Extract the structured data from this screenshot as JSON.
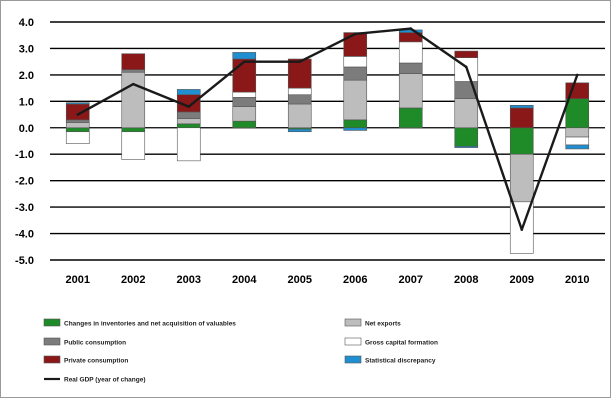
{
  "chart_data": {
    "type": "bar",
    "categories": [
      "2001",
      "2002",
      "2003",
      "2004",
      "2005",
      "2006",
      "2007",
      "2008",
      "2009",
      "2010"
    ],
    "ylim": [
      -5.0,
      4.0
    ],
    "yticks": [
      "4.0",
      "3.0",
      "2.0",
      "1.0",
      "0.0",
      "-1.0",
      "-2.0",
      "-3.0",
      "-4.0",
      "-5.0"
    ],
    "gridlines": true,
    "legend_position": "bottom",
    "stack_order": [
      "Changes in inventories and net acquisition of valuables",
      "Net exports",
      "Public consumption",
      "Gross capital formation",
      "Private consumption",
      "Statistical discrepancy"
    ],
    "series": [
      {
        "name": "Changes in inventories and net acquisition of valuables",
        "color": "#1e8a28",
        "values": [
          -0.15,
          -0.15,
          0.15,
          0.25,
          -0.05,
          0.3,
          0.75,
          -0.7,
          -1.0,
          1.1
        ]
      },
      {
        "name": "Net exports",
        "color": "#bdbdbd",
        "values": [
          0.2,
          2.1,
          0.2,
          0.55,
          0.9,
          1.5,
          1.3,
          1.1,
          -1.8,
          -0.35
        ]
      },
      {
        "name": "Public consumption",
        "color": "#7c7c7c",
        "values": [
          0.1,
          0.1,
          0.25,
          0.35,
          0.35,
          0.5,
          0.4,
          0.65,
          0.0,
          0.0
        ]
      },
      {
        "name": "Gross capital formation",
        "color": "#ffffff",
        "values": [
          -0.45,
          -1.05,
          -1.25,
          0.2,
          0.25,
          0.4,
          0.8,
          0.9,
          -1.95,
          -0.3
        ]
      },
      {
        "name": "Private consumption",
        "color": "#8b1818",
        "values": [
          0.6,
          0.6,
          0.65,
          1.25,
          1.1,
          0.9,
          0.35,
          0.25,
          0.75,
          0.6
        ]
      },
      {
        "name": "Statistical discrepancy",
        "color": "#1f8fd1",
        "values": [
          0.05,
          0.0,
          0.2,
          0.25,
          -0.1,
          -0.1,
          0.1,
          -0.05,
          0.1,
          -0.15
        ]
      }
    ],
    "line": {
      "name": "Real GDP (year of change)",
      "color": "#1a1a1a",
      "values": [
        0.5,
        1.65,
        0.8,
        2.5,
        2.5,
        3.55,
        3.75,
        2.3,
        -3.85,
        2.0
      ]
    }
  },
  "legend": {
    "items": [
      {
        "key": "inv",
        "label": "Changes in inventories and net acquisition of valuables",
        "color": "#1e8a28",
        "kind": "box"
      },
      {
        "key": "nx",
        "label": "Net exports",
        "color": "#bdbdbd",
        "kind": "box"
      },
      {
        "key": "pub",
        "label": "Public consumption",
        "color": "#7c7c7c",
        "kind": "box"
      },
      {
        "key": "gcf",
        "label": "Gross capital formation",
        "color": "#ffffff",
        "kind": "box"
      },
      {
        "key": "priv",
        "label": "Private consumption",
        "color": "#8b1818",
        "kind": "box"
      },
      {
        "key": "disc",
        "label": "Statistical discrepancy",
        "color": "#1f8fd1",
        "kind": "box"
      },
      {
        "key": "gdp",
        "label": "Real GDP (year of change)",
        "color": "#1a1a1a",
        "kind": "line"
      }
    ]
  }
}
